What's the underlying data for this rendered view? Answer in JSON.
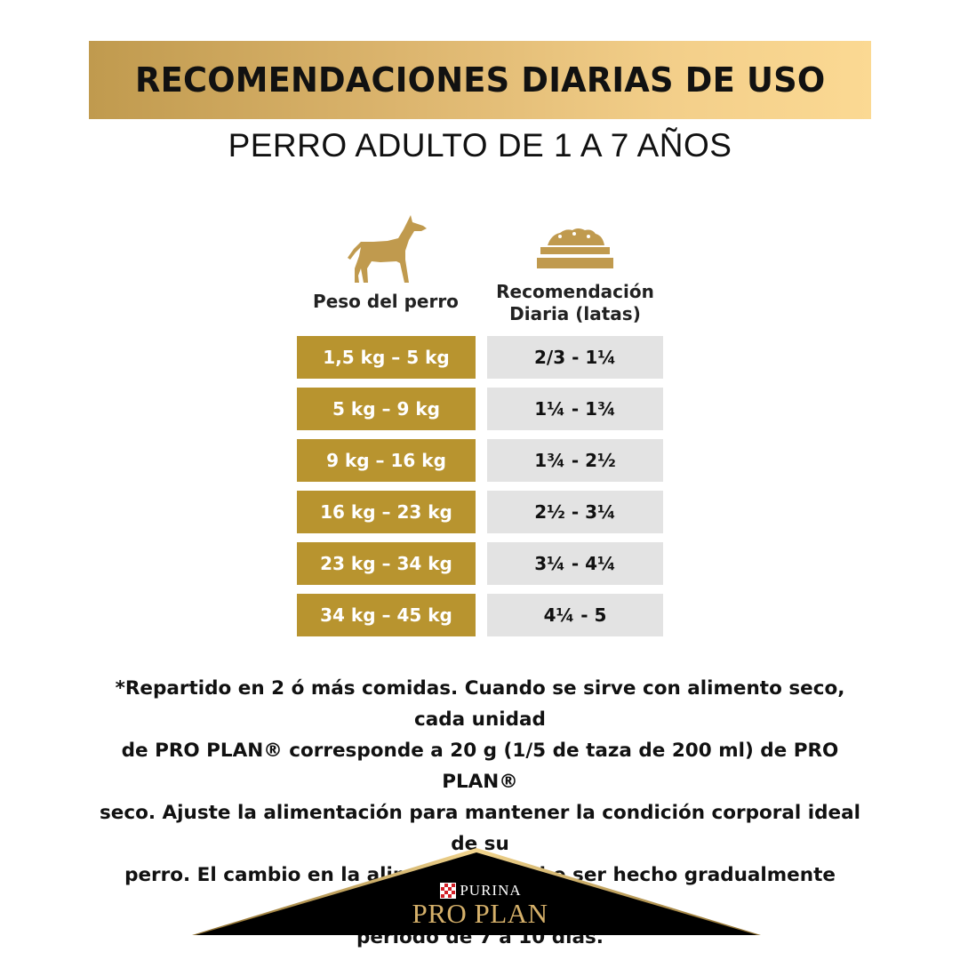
{
  "header": {
    "title": "RECOMENDACIONES DIARIAS DE USO",
    "subtitle": "PERRO ADULTO DE 1 A 7 AÑOS"
  },
  "table": {
    "icons": [
      "dog-icon",
      "food-bowl-icon"
    ],
    "col_weight": "Peso del perro",
    "col_rec_line1": "Recomendación",
    "col_rec_line2": "Diaria (latas)",
    "rows": [
      {
        "weight": "1,5 kg – 5 kg",
        "rec": "2/3 - 1¼"
      },
      {
        "weight": "5 kg – 9 kg",
        "rec": "1¼ - 1¾"
      },
      {
        "weight": "9 kg – 16 kg",
        "rec": "1¾ - 2½"
      },
      {
        "weight": "16 kg – 23 kg",
        "rec": "2½ - 3¼"
      },
      {
        "weight": "23 kg – 34 kg",
        "rec": "3¼ - 4¼"
      },
      {
        "weight": "34 kg – 45 kg",
        "rec": "4¼ - 5"
      }
    ]
  },
  "note": {
    "line1": "*Repartido en 2 ó más comidas. Cuando se sirve con alimento seco, cada unidad",
    "line2": "de PRO PLAN® corresponde a 20 g (1/5 de taza de 200 ml) de PRO PLAN®",
    "line3": "seco.  Ajuste la alimentación para mantener la condición corporal ideal de su",
    "line4": "perro. El cambio en la alimentación debe ser hecho gradualmente durante un",
    "line5": "periodo de 7 a 10 días."
  },
  "brand": {
    "purina": "PURINA",
    "proplan": "PRO PLAN"
  },
  "colors": {
    "gold": "#b8942f",
    "gray_cell": "#e3e3e3",
    "banner_gradient": [
      "#c09a4e",
      "#fbd993"
    ],
    "brand_black": "#000000"
  }
}
